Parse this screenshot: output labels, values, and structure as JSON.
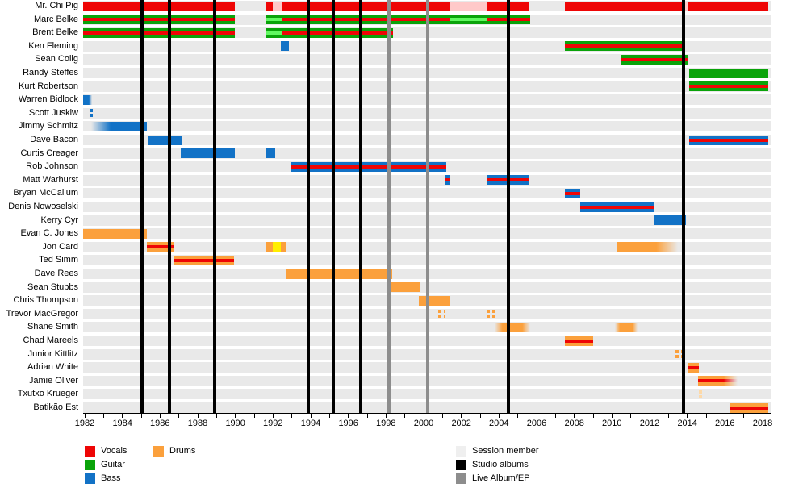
{
  "chart_data": {
    "type": "timeline",
    "title": "",
    "description": "Gantt-style band membership timeline; colored bars show each member's tenure and role, vertical lines mark album releases.",
    "x_axis": {
      "min_year": 1982,
      "max_year": 2018,
      "tick_every_years": 1,
      "label_every_years": 2,
      "tick_labels": [
        "1982",
        "1984",
        "1986",
        "1988",
        "1990",
        "1992",
        "1994",
        "1996",
        "1998",
        "2000",
        "2002",
        "2004",
        "2006",
        "2008",
        "2010",
        "2012",
        "2014",
        "2016",
        "2018"
      ]
    },
    "colors": {
      "red": "#ee0505",
      "green": "#0aa30a",
      "blue": "#1272c6",
      "orange": "#fba03c",
      "yellow": "#ffee00",
      "pink": "#ffc9c9",
      "lightgreen": "#61f861",
      "lightorange": "#fdd9a8",
      "row_band": "#e9e9e9",
      "studio_line": "#000000",
      "live_line": "#8d8d8d",
      "session_swatch": "#efefef"
    },
    "styles": {
      "vocals": {
        "fill": "red"
      },
      "guitar": {
        "fill": "green"
      },
      "bass": {
        "fill": "blue"
      },
      "drums": {
        "fill": "orange"
      },
      "guitar_vocals": {
        "fill": "green",
        "stripe": "red"
      },
      "bass_vocals": {
        "fill": "blue",
        "stripe": "red"
      },
      "drums_vocals": {
        "fill": "orange",
        "stripe": "red"
      },
      "session_vocals": {
        "fill": "pink"
      },
      "guitar_session": {
        "fill": "green",
        "stripe": "lightgreen"
      },
      "other": {
        "fill": "yellow"
      },
      "bass_dashed": {
        "fill": "blue",
        "dashed": true
      },
      "drums_dashed": {
        "fill": "orange",
        "dashed": true
      },
      "drums_dashed_faint": {
        "fill": "lightorange",
        "dashed": true
      }
    },
    "album_lines": {
      "studio_years": [
        1985.05,
        1986.5,
        1988.9,
        1993.85,
        1995.2,
        1996.65,
        2004.5,
        2013.8
      ],
      "live_years": [
        1998.15,
        2000.2
      ]
    },
    "members": [
      {
        "name": "Mr. Chi Pig",
        "segments": [
          {
            "start": 1981.9,
            "end": 1989.95,
            "style": "vocals"
          },
          {
            "start": 1991.6,
            "end": 1992.0,
            "style": "vocals"
          },
          {
            "start": 1992.0,
            "end": 1992.45,
            "style": "session_vocals"
          },
          {
            "start": 1992.45,
            "end": 2001.4,
            "style": "vocals"
          },
          {
            "start": 2001.4,
            "end": 2003.35,
            "style": "session_vocals"
          },
          {
            "start": 2003.35,
            "end": 2005.62,
            "style": "vocals"
          },
          {
            "start": 2007.5,
            "end": 2013.78,
            "style": "vocals"
          },
          {
            "start": 2013.78,
            "end": 2014.05,
            "style": "session_vocals"
          },
          {
            "start": 2014.05,
            "end": 2018.3,
            "style": "vocals"
          }
        ]
      },
      {
        "name": "Marc Belke",
        "segments": [
          {
            "start": 1981.9,
            "end": 1989.95,
            "style": "guitar_vocals"
          },
          {
            "start": 1991.6,
            "end": 1992.5,
            "style": "guitar_session"
          },
          {
            "start": 1992.5,
            "end": 2001.4,
            "style": "guitar_vocals"
          },
          {
            "start": 2001.4,
            "end": 2003.35,
            "style": "guitar_session"
          },
          {
            "start": 2003.35,
            "end": 2005.65,
            "style": "guitar_vocals"
          }
        ]
      },
      {
        "name": "Brent Belke",
        "segments": [
          {
            "start": 1981.9,
            "end": 1989.95,
            "style": "guitar_vocals"
          },
          {
            "start": 1991.6,
            "end": 1992.5,
            "style": "guitar_session"
          },
          {
            "start": 1992.5,
            "end": 1998.35,
            "style": "guitar_vocals"
          }
        ]
      },
      {
        "name": "Ken Fleming",
        "segments": [
          {
            "start": 1992.4,
            "end": 1992.85,
            "style": "bass"
          },
          {
            "start": 2007.5,
            "end": 2013.85,
            "style": "guitar_vocals"
          }
        ]
      },
      {
        "name": "Sean Colig",
        "segments": [
          {
            "start": 2010.45,
            "end": 2014.0,
            "style": "guitar_vocals"
          }
        ]
      },
      {
        "name": "Randy Steffes",
        "segments": [
          {
            "start": 2014.1,
            "end": 2018.3,
            "style": "guitar"
          }
        ]
      },
      {
        "name": "Kurt Robertson",
        "segments": [
          {
            "start": 2014.1,
            "end": 2018.3,
            "style": "guitar_vocals"
          }
        ]
      },
      {
        "name": "Warren Bidlock",
        "segments": [
          {
            "start": 1981.9,
            "end": 1982.4,
            "style": "bass",
            "fade": "right"
          }
        ]
      },
      {
        "name": "Scott Juskiw",
        "segments": [
          {
            "start": 1982.25,
            "end": 1982.5,
            "style": "bass_dashed"
          }
        ]
      },
      {
        "name": "Jimmy Schmitz",
        "segments": [
          {
            "start": 1982.35,
            "end": 1985.3,
            "style": "bass",
            "fade": "left"
          }
        ]
      },
      {
        "name": "Dave Bacon",
        "segments": [
          {
            "start": 1985.35,
            "end": 1987.15,
            "style": "bass"
          },
          {
            "start": 2014.1,
            "end": 2018.3,
            "style": "bass_vocals"
          }
        ]
      },
      {
        "name": "Curtis Creager",
        "segments": [
          {
            "start": 1987.1,
            "end": 1989.95,
            "style": "bass"
          },
          {
            "start": 1991.65,
            "end": 1992.1,
            "style": "bass"
          }
        ]
      },
      {
        "name": "Rob Johnson",
        "segments": [
          {
            "start": 1992.95,
            "end": 2001.2,
            "style": "bass_vocals"
          }
        ]
      },
      {
        "name": "Matt Warhurst",
        "segments": [
          {
            "start": 2001.15,
            "end": 2001.4,
            "style": "bass_vocals"
          },
          {
            "start": 2003.35,
            "end": 2005.6,
            "style": "bass_vocals"
          }
        ]
      },
      {
        "name": "Bryan McCallum",
        "segments": [
          {
            "start": 2007.5,
            "end": 2008.3,
            "style": "bass_vocals"
          }
        ]
      },
      {
        "name": "Denis Nowoselski",
        "segments": [
          {
            "start": 2008.3,
            "end": 2012.2,
            "style": "bass_vocals"
          }
        ]
      },
      {
        "name": "Kerry Cyr",
        "segments": [
          {
            "start": 2012.2,
            "end": 2013.95,
            "style": "bass"
          }
        ]
      },
      {
        "name": "Evan C. Jones",
        "segments": [
          {
            "start": 1981.9,
            "end": 1985.3,
            "style": "drums"
          }
        ]
      },
      {
        "name": "Jon Card",
        "segments": [
          {
            "start": 1985.3,
            "end": 1986.7,
            "style": "drums_vocals"
          },
          {
            "start": 1991.65,
            "end": 1992.0,
            "style": "drums"
          },
          {
            "start": 1992.0,
            "end": 1992.4,
            "style": "other"
          },
          {
            "start": 1992.4,
            "end": 1992.7,
            "style": "drums"
          },
          {
            "start": 2010.25,
            "end": 2013.5,
            "style": "drums",
            "fade": "right"
          }
        ]
      },
      {
        "name": "Ted Simm",
        "segments": [
          {
            "start": 1986.7,
            "end": 1989.95,
            "style": "drums_vocals"
          }
        ]
      },
      {
        "name": "Dave Rees",
        "segments": [
          {
            "start": 1992.7,
            "end": 1998.35,
            "style": "drums"
          }
        ]
      },
      {
        "name": "Sean Stubbs",
        "segments": [
          {
            "start": 1998.3,
            "end": 1999.8,
            "style": "drums"
          }
        ]
      },
      {
        "name": "Chris Thompson",
        "segments": [
          {
            "start": 1999.75,
            "end": 2001.4,
            "style": "drums"
          }
        ]
      },
      {
        "name": "Trevor MacGregor",
        "segments": [
          {
            "start": 2000.75,
            "end": 2001.1,
            "style": "drums_dashed"
          },
          {
            "start": 2003.35,
            "end": 2003.85,
            "style": "drums_dashed"
          }
        ]
      },
      {
        "name": "Shane Smith",
        "segments": [
          {
            "start": 2003.75,
            "end": 2005.65,
            "style": "drums",
            "fade": "both"
          },
          {
            "start": 2010.15,
            "end": 2011.35,
            "style": "drums",
            "fade": "both"
          }
        ]
      },
      {
        "name": "Chad Mareels",
        "segments": [
          {
            "start": 2007.5,
            "end": 2009.0,
            "style": "drums_vocals"
          }
        ]
      },
      {
        "name": "Junior Kittlitz",
        "segments": [
          {
            "start": 2013.35,
            "end": 2013.95,
            "style": "drums_dashed"
          }
        ]
      },
      {
        "name": "Adrian White",
        "segments": [
          {
            "start": 2014.05,
            "end": 2014.6,
            "style": "drums_vocals"
          }
        ]
      },
      {
        "name": "Jamie Oliver",
        "segments": [
          {
            "start": 2014.55,
            "end": 2016.65,
            "style": "drums_vocals",
            "fade": "right"
          }
        ]
      },
      {
        "name": "Txutxo Krueger",
        "segments": [
          {
            "start": 2014.6,
            "end": 2014.78,
            "style": "drums_dashed_faint"
          }
        ]
      },
      {
        "name": "Batikão Est",
        "segments": [
          {
            "start": 2016.3,
            "end": 2018.3,
            "style": "drums_vocals"
          }
        ]
      }
    ],
    "legend": {
      "roles": [
        {
          "label": "Vocals",
          "color_key": "red"
        },
        {
          "label": "Guitar",
          "color_key": "green"
        },
        {
          "label": "Bass",
          "color_key": "blue"
        },
        {
          "label": "Drums",
          "color_key": "orange"
        }
      ],
      "markers": [
        {
          "label": "Session member",
          "color_key": "session_swatch"
        },
        {
          "label": "Studio albums",
          "color_key": "studio_line"
        },
        {
          "label": "Live Album/EP",
          "color_key": "live_line"
        }
      ]
    }
  }
}
